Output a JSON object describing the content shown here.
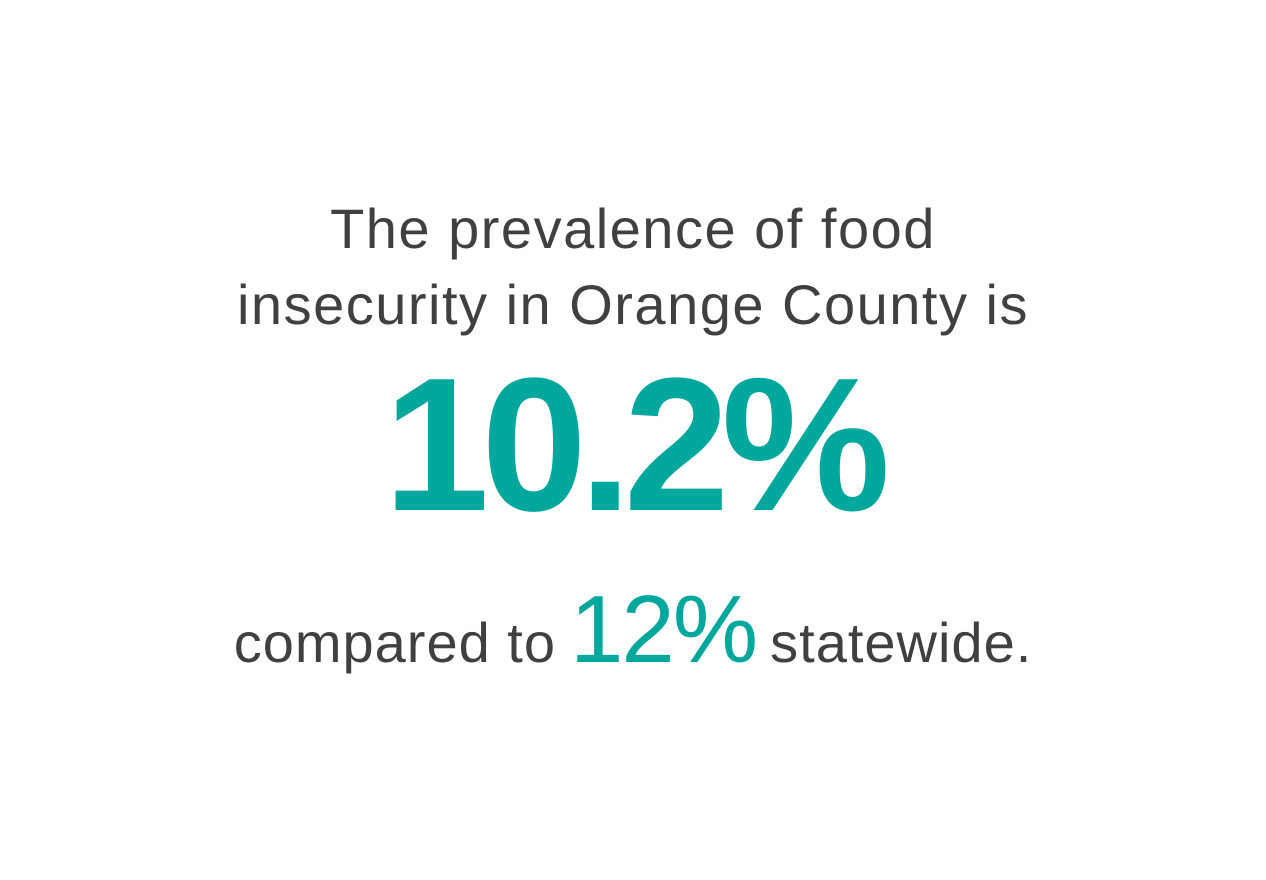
{
  "headline": {
    "line1": "The prevalence of food",
    "line2": "insecurity in Orange County is"
  },
  "main_stat": "10.2%",
  "comparison": {
    "prefix": "compared to",
    "value": "12%",
    "suffix": "statewide."
  },
  "colors": {
    "accent": "#00a79d",
    "text": "#404041"
  }
}
